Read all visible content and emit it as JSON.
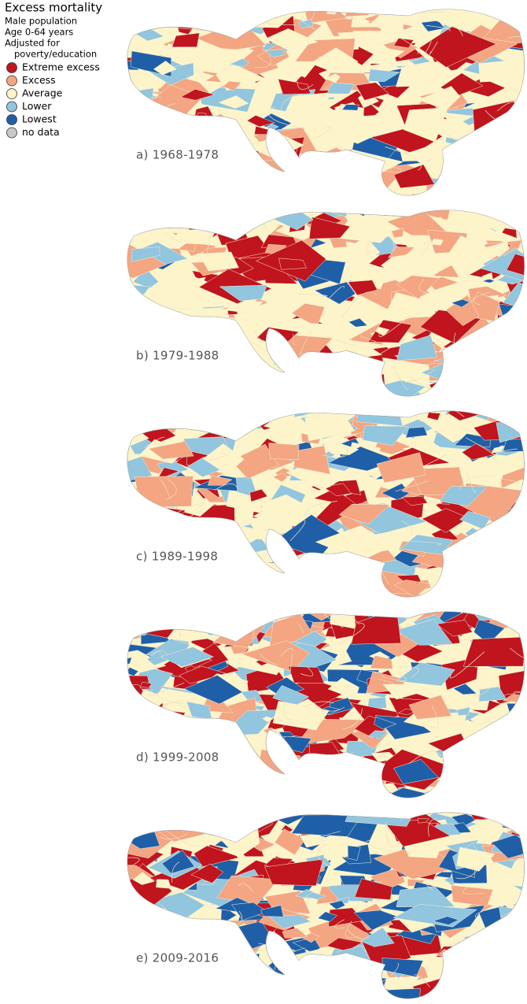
{
  "legend": {
    "title": "Excess mortality",
    "subtitle": [
      "Male population",
      "Age 0-64 years",
      "Adjusted for",
      "poverty/education"
    ],
    "items": [
      {
        "label": "Extreme excess",
        "color": "#c0141e"
      },
      {
        "label": "Excess",
        "color": "#f4a582"
      },
      {
        "label": "Average",
        "color": "#fdf5c9"
      },
      {
        "label": "Lower",
        "color": "#92c5de"
      },
      {
        "label": "Lowest",
        "color": "#1f5fa8"
      },
      {
        "label": "no data",
        "color": "#c8c8c8"
      }
    ]
  },
  "panels": [
    {
      "label": "a) 1968-1978"
    },
    {
      "label": "b) 1979-1988"
    },
    {
      "label": "c) 1989-1998"
    },
    {
      "label": "d) 1999-2008"
    },
    {
      "label": "e) 2009-2016"
    }
  ]
}
